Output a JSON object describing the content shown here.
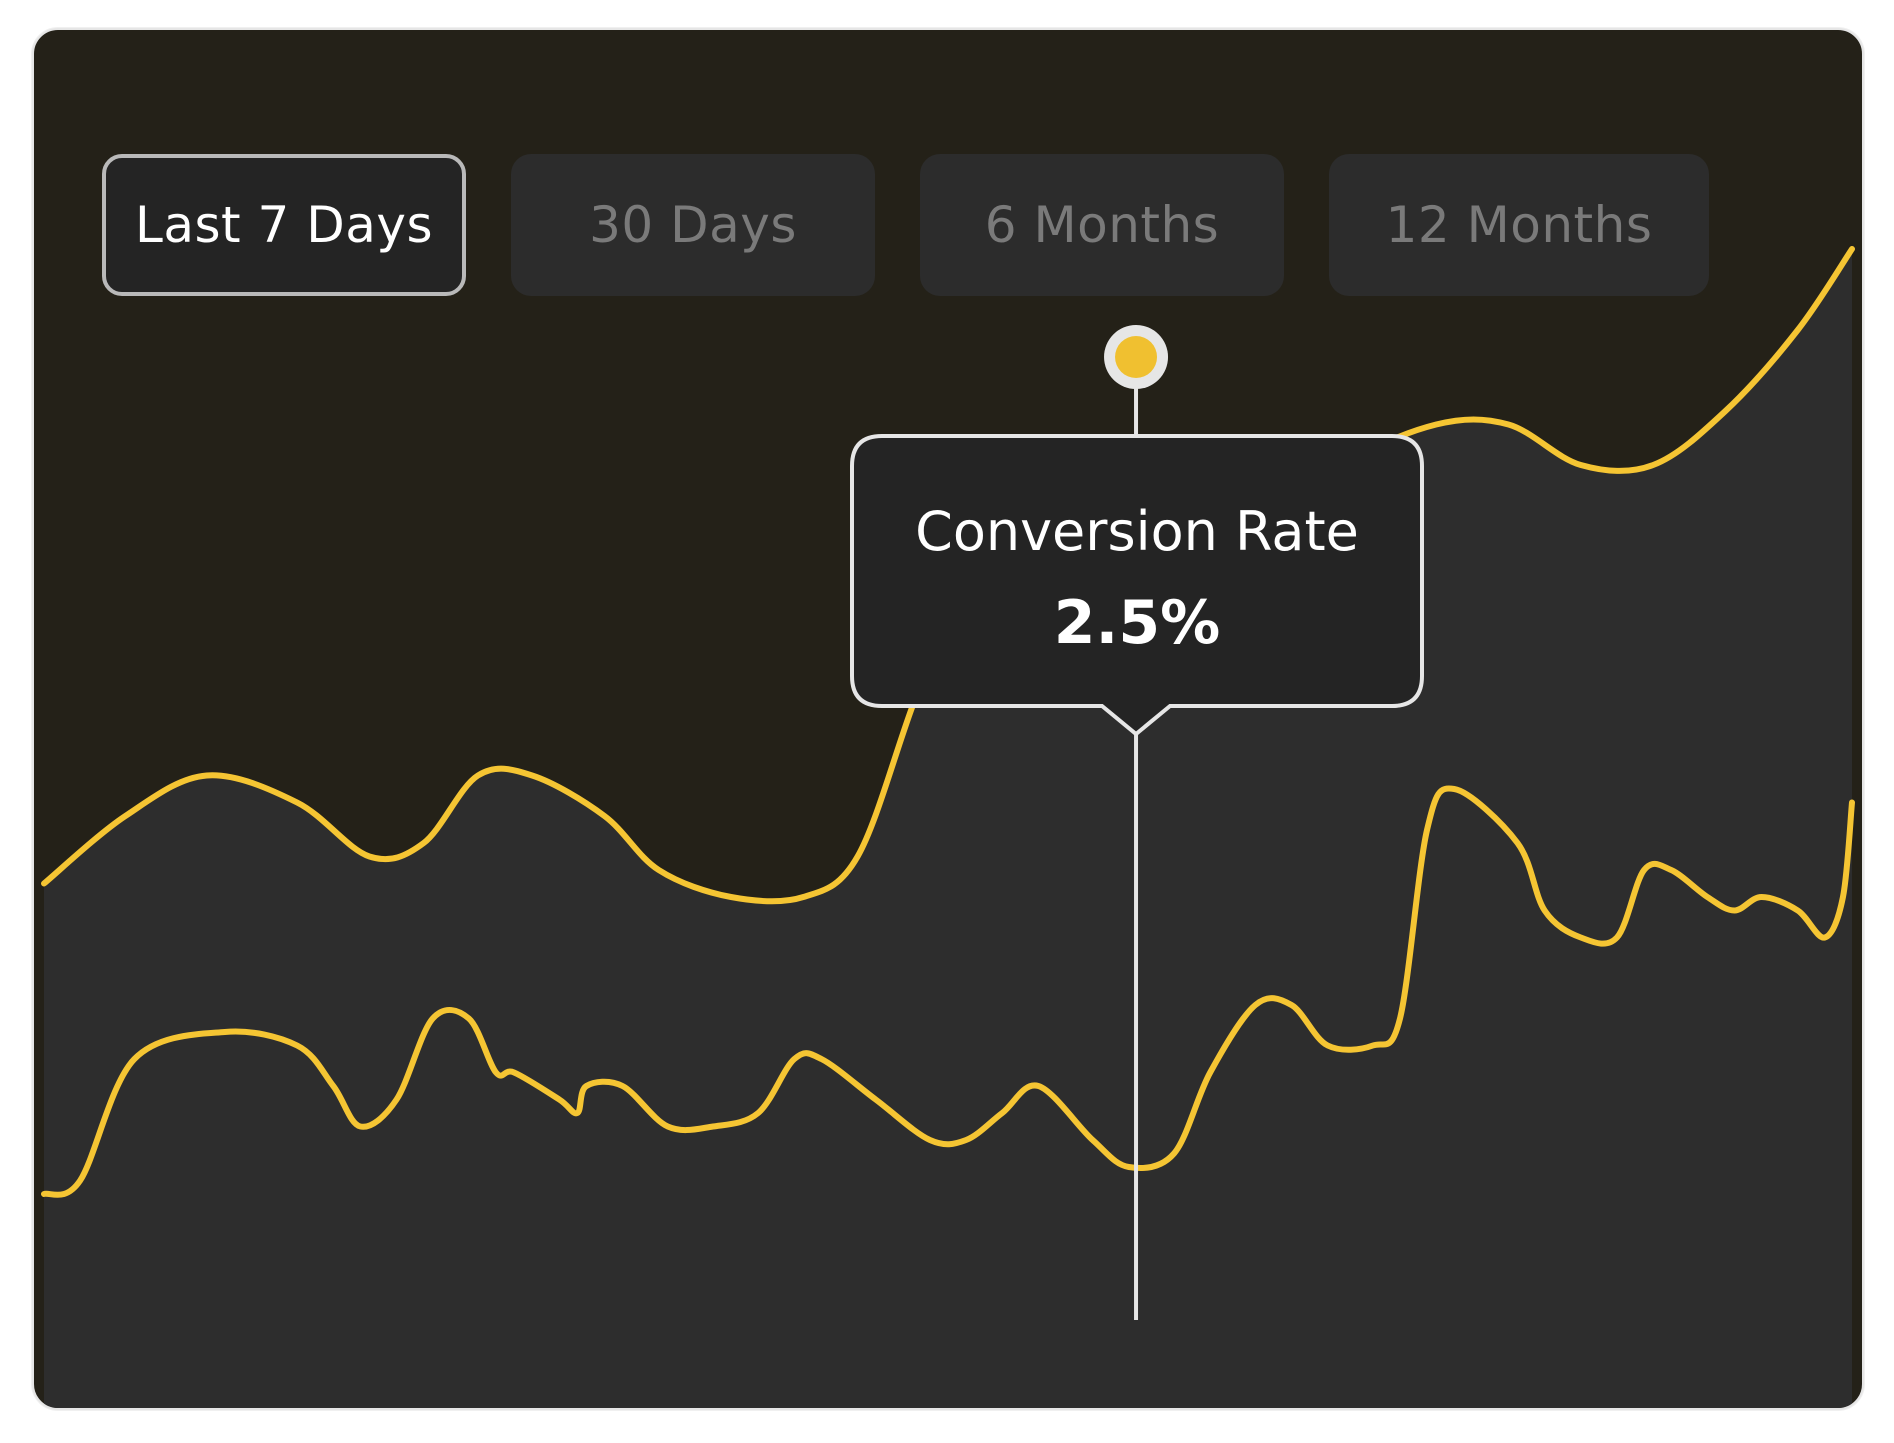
{
  "tabs": [
    {
      "label": "Last 7 Days",
      "active": true
    },
    {
      "label": "30 Days",
      "active": false
    },
    {
      "label": "6 Months",
      "active": false
    },
    {
      "label": "12 Months",
      "active": false
    }
  ],
  "tooltip": {
    "label": "Conversion Rate",
    "value": "2.5%"
  },
  "colors": {
    "line": "#f5c533",
    "area": "#2d2d2d",
    "background": "#242118",
    "marker_fill": "#f0c030",
    "marker_ring": "#e6e6e6"
  },
  "chart_data": {
    "type": "area",
    "ylim": [
      0,
      10
    ],
    "xlim": [
      0,
      100
    ],
    "grid": false,
    "series": [
      {
        "points": [
          [
            0,
            3.9
          ],
          [
            4.5,
            4.4
          ],
          [
            9,
            4.7
          ],
          [
            14,
            4.5
          ],
          [
            18,
            4.1
          ],
          [
            21,
            4.2
          ],
          [
            24,
            4.7
          ],
          [
            27,
            4.7
          ],
          [
            31,
            4.4
          ],
          [
            34,
            4.0
          ],
          [
            38,
            3.8
          ],
          [
            42,
            3.8
          ],
          [
            45,
            4.1
          ],
          [
            48,
            5.2
          ],
          [
            51,
            6.3
          ],
          [
            54,
            6.6
          ],
          [
            57,
            6.4
          ],
          [
            60,
            6.1
          ],
          [
            63,
            6.1
          ],
          [
            67,
            6.4
          ],
          [
            72,
            7.0
          ],
          [
            77,
            7.3
          ],
          [
            81,
            7.3
          ],
          [
            85,
            7.0
          ],
          [
            89,
            7.0
          ],
          [
            93,
            7.4
          ],
          [
            97,
            8.0
          ],
          [
            100,
            8.6
          ]
        ]
      },
      {
        "points": [
          [
            0,
            1.6
          ],
          [
            2,
            1.7
          ],
          [
            5,
            2.6
          ],
          [
            10,
            2.8
          ],
          [
            14,
            2.7
          ],
          [
            16,
            2.4
          ],
          [
            17.5,
            2.1
          ],
          [
            19.5,
            2.3
          ],
          [
            21.5,
            2.9
          ],
          [
            23.5,
            2.9
          ],
          [
            25,
            2.5
          ],
          [
            26,
            2.5
          ],
          [
            28.5,
            2.3
          ],
          [
            29.5,
            2.2
          ],
          [
            30,
            2.4
          ],
          [
            32,
            2.4
          ],
          [
            34.5,
            2.1
          ],
          [
            37,
            2.1
          ],
          [
            39.5,
            2.2
          ],
          [
            41.5,
            2.6
          ],
          [
            43,
            2.6
          ],
          [
            46,
            2.3
          ],
          [
            49,
            2.0
          ],
          [
            51,
            2.0
          ],
          [
            53,
            2.2
          ],
          [
            55,
            2.4
          ],
          [
            58,
            2.0
          ],
          [
            60,
            1.8
          ],
          [
            62.5,
            1.9
          ],
          [
            64.5,
            2.5
          ],
          [
            67,
            3.0
          ],
          [
            69,
            3.0
          ],
          [
            71,
            2.7
          ],
          [
            73.5,
            2.7
          ],
          [
            75,
            2.9
          ],
          [
            76.5,
            4.3
          ],
          [
            78,
            4.6
          ],
          [
            81.5,
            4.2
          ],
          [
            83,
            3.7
          ],
          [
            85,
            3.5
          ],
          [
            87,
            3.5
          ],
          [
            88.5,
            4.0
          ],
          [
            90,
            4.0
          ],
          [
            92,
            3.8
          ],
          [
            93.5,
            3.7
          ],
          [
            95,
            3.8
          ],
          [
            97,
            3.7
          ],
          [
            98.5,
            3.5
          ],
          [
            99.5,
            3.8
          ],
          [
            100,
            4.5
          ]
        ]
      }
    ],
    "highlight": {
      "x": 60.4,
      "y": 7.8
    }
  }
}
